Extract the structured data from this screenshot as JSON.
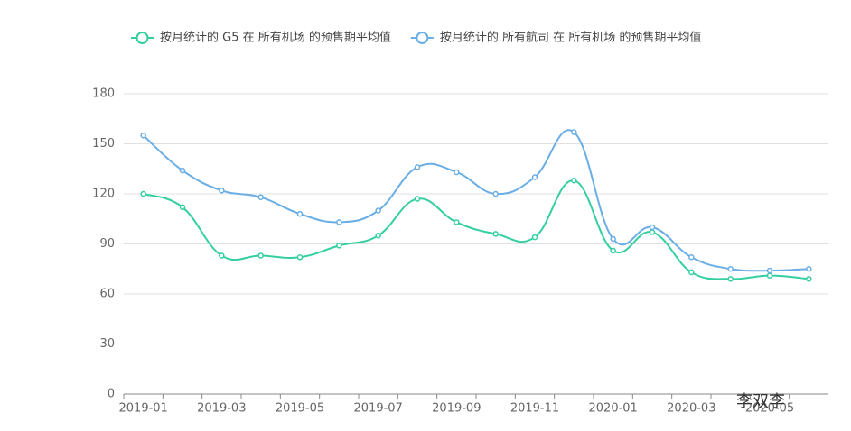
{
  "chart_data": {
    "type": "line",
    "categories": [
      "2019-01",
      null,
      "2019-03",
      null,
      "2019-05",
      null,
      "2019-07",
      null,
      "2019-09",
      null,
      "2019-11",
      null,
      "2020-01",
      null,
      "2020-03",
      null,
      "2020-05",
      null
    ],
    "series": [
      {
        "name": "按月统计的 G5 在 所有机场 的预售期平均值",
        "color": "#33cfa0",
        "values": [
          120,
          112,
          83,
          83,
          82,
          89,
          95,
          117,
          103,
          96,
          94,
          128,
          86,
          97,
          73,
          69,
          71,
          69
        ]
      },
      {
        "name": "按月统计的 所有航司 在 所有机场 的预售期平均值",
        "color": "#6aaee6",
        "values": [
          155,
          134,
          122,
          118,
          108,
          103,
          110,
          136,
          133,
          120,
          130,
          157,
          93,
          100,
          82,
          75,
          74,
          75
        ]
      }
    ],
    "ylim": [
      0,
      180
    ],
    "yticks": [
      0,
      30,
      60,
      90,
      120,
      150,
      180
    ],
    "grid": true,
    "watermark": "李双李"
  }
}
